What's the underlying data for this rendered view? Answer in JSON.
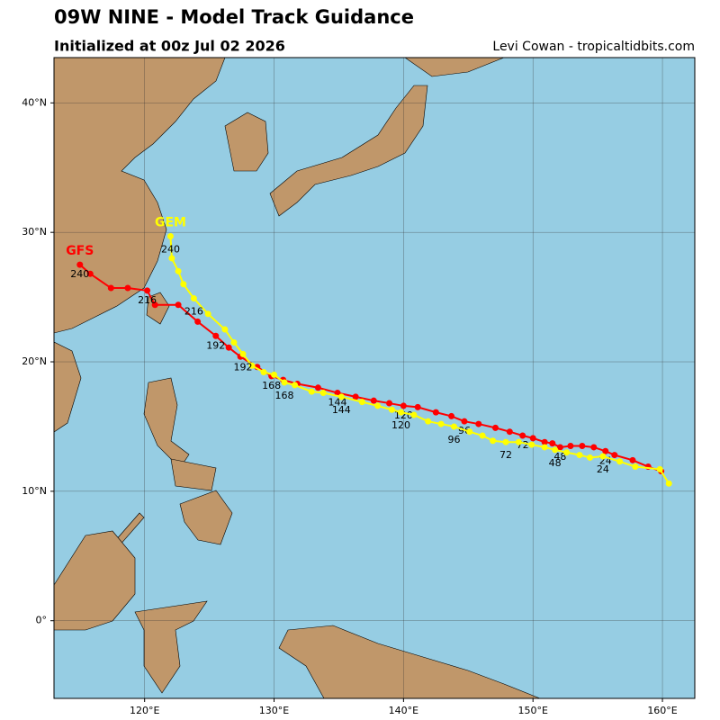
{
  "chart_data": {
    "type": "track",
    "title": "09W NINE - Model Track Guidance",
    "subtitle": "Initialized at 00z Jul 02 2026",
    "credit": "Levi Cowan - tropicaltidbits.com",
    "xlim": [
      113,
      162.5
    ],
    "ylim": [
      -6,
      43.5
    ],
    "xticks": [
      {
        "value": 120,
        "label": "120°E"
      },
      {
        "value": 130,
        "label": "130°E"
      },
      {
        "value": 140,
        "label": "140°E"
      },
      {
        "value": 150,
        "label": "150°E"
      },
      {
        "value": 160,
        "label": "160°E"
      }
    ],
    "yticks": [
      {
        "value": 0,
        "label": "0°"
      },
      {
        "value": 10,
        "label": "10°N"
      },
      {
        "value": 20,
        "label": "20°N"
      },
      {
        "value": 30,
        "label": "30°N"
      },
      {
        "value": 40,
        "label": "40°N"
      }
    ],
    "grid": true,
    "series": [
      {
        "name": "GFS",
        "color": "#ff0000",
        "x": [
          159.9,
          158.9,
          157.7,
          156.3,
          155.6,
          154.7,
          153.8,
          152.9,
          152.1,
          151.5,
          150.9,
          150.0,
          149.2,
          148.2,
          147.1,
          145.8,
          144.7,
          143.7,
          142.5,
          141.1,
          140.0,
          138.9,
          137.7,
          136.3,
          134.9,
          133.4,
          131.8,
          130.7,
          129.8,
          128.7,
          127.4,
          126.5,
          125.5,
          124.1,
          122.6,
          120.8,
          120.2,
          118.7,
          117.4,
          115.8,
          115.0
        ],
        "values": [
          11.55,
          11.9,
          12.4,
          12.8,
          13.1,
          13.4,
          13.5,
          13.5,
          13.4,
          13.7,
          13.8,
          14.1,
          14.3,
          14.6,
          14.9,
          15.2,
          15.4,
          15.8,
          16.1,
          16.5,
          16.6,
          16.8,
          17.0,
          17.3,
          17.6,
          18.0,
          18.3,
          18.6,
          18.9,
          19.6,
          20.4,
          21.1,
          22.0,
          23.1,
          24.4,
          24.4,
          25.5,
          25.7,
          25.7,
          26.8,
          27.5
        ],
        "point_labels": [
          null,
          null,
          null,
          null,
          24,
          null,
          null,
          null,
          48,
          null,
          null,
          null,
          72,
          null,
          null,
          null,
          96,
          null,
          null,
          null,
          120,
          null,
          null,
          null,
          144,
          null,
          null,
          null,
          168,
          null,
          null,
          null,
          192,
          null,
          null,
          null,
          216,
          null,
          null,
          null,
          240
        ]
      },
      {
        "name": "GEM",
        "color": "#ffff00",
        "x": [
          160.5,
          159.8,
          157.9,
          156.7,
          155.4,
          154.4,
          153.6,
          152.6,
          151.7,
          150.9,
          149.9,
          148.9,
          147.9,
          146.9,
          146.1,
          145.1,
          143.9,
          142.9,
          141.9,
          140.8,
          139.8,
          139.1,
          138.0,
          136.8,
          135.2,
          133.8,
          132.9,
          131.6,
          130.8,
          130.0,
          129.2,
          128.3,
          127.6,
          126.9,
          126.2,
          124.9,
          123.8,
          123.0,
          122.6,
          122.1,
          122.0
        ],
        "values": [
          10.6,
          11.7,
          11.9,
          12.3,
          12.7,
          12.6,
          12.8,
          13.0,
          13.2,
          13.4,
          13.6,
          13.8,
          13.8,
          13.9,
          14.3,
          14.6,
          15.0,
          15.2,
          15.4,
          15.9,
          16.1,
          16.3,
          16.6,
          16.9,
          17.3,
          17.6,
          17.7,
          18.2,
          18.4,
          19.0,
          19.2,
          19.7,
          20.6,
          21.5,
          22.5,
          23.7,
          24.9,
          26.0,
          27.0,
          28.0,
          29.7
        ],
        "point_labels": [
          null,
          null,
          null,
          null,
          24,
          null,
          null,
          null,
          48,
          null,
          null,
          null,
          72,
          null,
          null,
          null,
          96,
          null,
          null,
          null,
          120,
          null,
          null,
          null,
          144,
          null,
          null,
          null,
          168,
          null,
          null,
          null,
          192,
          null,
          null,
          null,
          216,
          null,
          null,
          null,
          240
        ]
      }
    ]
  }
}
